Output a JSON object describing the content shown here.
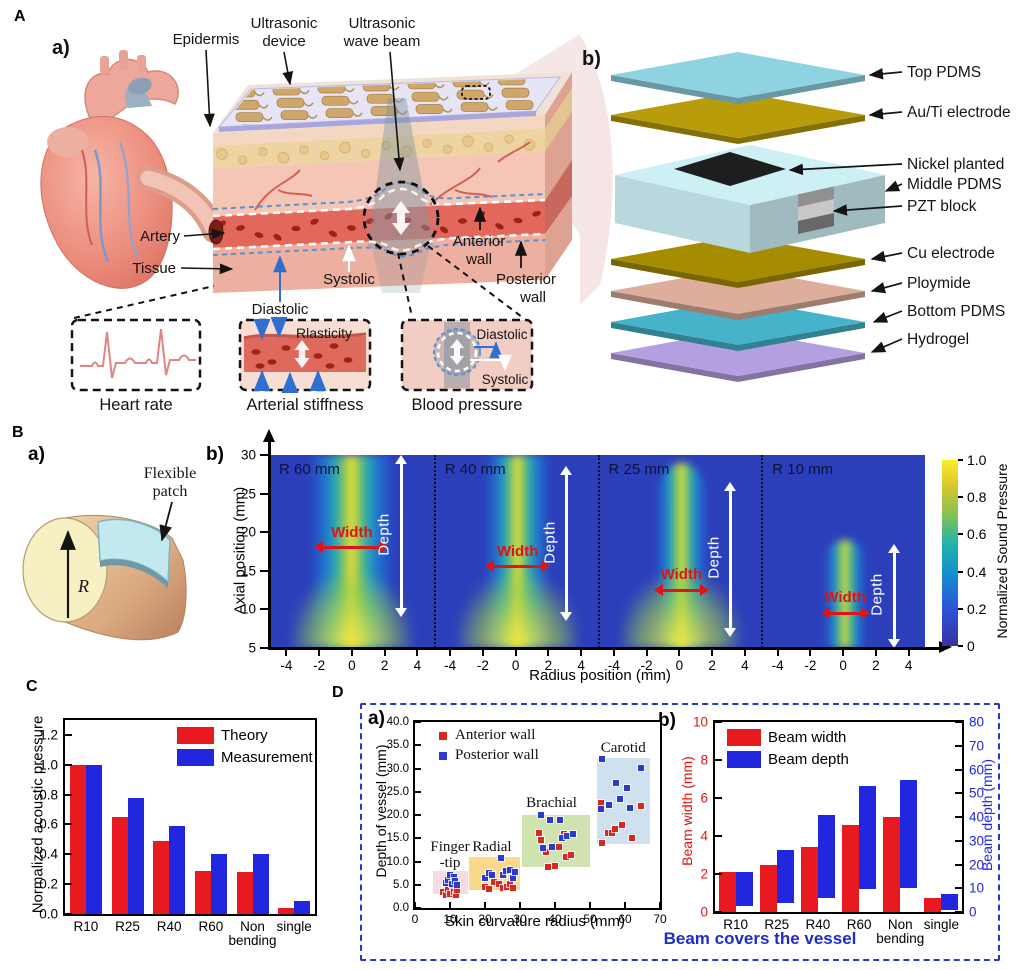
{
  "panelA": {
    "letter": "A",
    "a": {
      "label": "a)",
      "epidermis": "Epidermis",
      "ultrasonic_device": [
        "Ultrasonic",
        "device"
      ],
      "wave_beam": [
        "Ultrasonic",
        "wave beam"
      ],
      "artery": "Artery",
      "tissue": "Tissue",
      "systolic": "Systolic",
      "diastolic": "Diastolic",
      "anterior_wall": [
        "Anterior",
        "wall"
      ],
      "posterior_wall": [
        "Posterior",
        "wall"
      ],
      "insets": {
        "heart_rate": "Heart rate",
        "arterial_stiffness": "Arterial stiffness",
        "elasticity_note": "Rlasticity",
        "blood_pressure": "Blood pressure",
        "bp_diastolic": "Diastolic",
        "bp_systolic": "Systolic"
      }
    },
    "b": {
      "label": "b)",
      "layers": [
        {
          "name": "Top PDMS",
          "color": "#8fd3e2"
        },
        {
          "name": "Au/Ti electrode",
          "color": "#b89c0a"
        },
        {
          "name": "Nickel planted",
          "color": "#1e1e1e"
        },
        {
          "name": "Middle PDMS",
          "color": "#cdf0f5"
        },
        {
          "name": "PZT block",
          "color": "#909090"
        },
        {
          "name": "Cu electrode",
          "color": "#a68d00"
        },
        {
          "name": "Ploymide",
          "color": "#dcae9b"
        },
        {
          "name": "Bottom PDMS",
          "color": "#45b3c9"
        },
        {
          "name": "Hydrogel",
          "color": "#b4a0e0"
        }
      ]
    }
  },
  "panelB": {
    "letter": "B",
    "a": {
      "label": "a)",
      "flexible_patch": [
        "Flexible",
        "patch"
      ],
      "radius": "R"
    },
    "b": {
      "label": "b)"
    }
  },
  "panelC": {
    "letter": "C"
  },
  "panelD": {
    "letter": "D",
    "a_label": "a)",
    "b_label": "b)",
    "caption": "Beam covers the vessel"
  },
  "chart_data": [
    {
      "id": "sound-pressure-field",
      "type": "heatmap",
      "ylabel": "Axial position (mm)",
      "xlabel": "Radius position (mm)",
      "y_ticks": [
        30,
        25,
        20,
        15,
        10,
        5
      ],
      "x_ticks": [
        -4,
        -2,
        0,
        2,
        4
      ],
      "x_range_mm": [
        -5,
        5
      ],
      "y_range_mm": [
        5,
        30
      ],
      "colorbar": {
        "label": "Normalized Sound Pressure",
        "ticks": [
          "1.0",
          "0.8",
          "0.6",
          "0.4",
          "0.2",
          "0"
        ],
        "range": [
          0,
          1
        ]
      },
      "annotations": {
        "width_label": "Width",
        "depth_label": "Depth"
      },
      "panels": [
        {
          "label": "R 60 mm",
          "beam": {
            "visual_width_mm": 5.2,
            "top_mm": 30,
            "bottom_mm": 5,
            "glow": true
          },
          "width_arrow": {
            "y_mm": 18,
            "span_mm": 3.6
          },
          "depth_arrow": {
            "x_mm": 3,
            "from_mm": 10,
            "to_mm": 29
          }
        },
        {
          "label": "R 40 mm",
          "beam": {
            "visual_width_mm": 4.0,
            "top_mm": 30,
            "bottom_mm": 5,
            "glow": true
          },
          "width_arrow": {
            "y_mm": 15.5,
            "span_mm": 3.0
          },
          "depth_arrow": {
            "x_mm": 3,
            "from_mm": 9.5,
            "to_mm": 27.5
          }
        },
        {
          "label": "R 25 mm",
          "beam": {
            "visual_width_mm": 3.2,
            "top_mm": 29,
            "bottom_mm": 5,
            "glow": true
          },
          "width_arrow": {
            "y_mm": 12.5,
            "span_mm": 2.4
          },
          "depth_arrow": {
            "x_mm": 3,
            "from_mm": 7.5,
            "to_mm": 25.5
          }
        },
        {
          "label": "R 10 mm",
          "beam": {
            "visual_width_mm": 2.6,
            "top_mm": 19,
            "bottom_mm": 5,
            "glow": false
          },
          "width_arrow": {
            "y_mm": 9.5,
            "span_mm": 2.0
          },
          "depth_arrow": {
            "x_mm": 3,
            "from_mm": 6,
            "to_mm": 17.5
          }
        }
      ]
    },
    {
      "id": "acoustic-pressure-bars",
      "type": "bar",
      "ylabel": "Normalized acoustic pressure",
      "categories": [
        "R10",
        "R25",
        "R40",
        "R60",
        "Non\nbending",
        "single"
      ],
      "y_ticks": [
        0,
        0.2,
        0.4,
        0.6,
        0.8,
        1.0,
        1.2
      ],
      "ylim": [
        0,
        1.3
      ],
      "legend_position": "top-right",
      "series": [
        {
          "name": "Theory",
          "color": "#e8191f",
          "values": [
            1.0,
            0.65,
            0.49,
            0.29,
            0.28,
            0.04
          ]
        },
        {
          "name": "Measurement",
          "color": "#2127df",
          "values": [
            1.0,
            0.78,
            0.59,
            0.4,
            0.4,
            0.09
          ]
        }
      ]
    },
    {
      "id": "vessel-depth-scatter",
      "type": "scatter",
      "xlabel": "Skin curvature radius (mm)",
      "ylabel": "Depth of vessel (mm)",
      "xlim": [
        0,
        70
      ],
      "ylim": [
        0,
        40
      ],
      "x_ticks": [
        0,
        10,
        20,
        30,
        40,
        50,
        60,
        70
      ],
      "y_ticks": [
        "0.0",
        "5.0",
        "10.0",
        "15.0",
        "20.0",
        "25.0",
        "30.0",
        "35.0",
        "40.0"
      ],
      "regions": [
        {
          "name": "Finger\n-tip",
          "x": [
            5,
            15
          ],
          "y": [
            3,
            8
          ],
          "color": "#f6dbe2",
          "label_x": 10,
          "label_y": 11.5
        },
        {
          "name": "Radial",
          "x": [
            15.5,
            30
          ],
          "y": [
            3.8,
            11
          ],
          "color": "#fbd88a",
          "label_x": 22,
          "label_y": 13.2
        },
        {
          "name": "Brachial",
          "x": [
            30.5,
            50
          ],
          "y": [
            8.8,
            20
          ],
          "color": "#cfe2b0",
          "label_x": 39,
          "label_y": 22.5
        },
        {
          "name": "Carotid",
          "x": [
            52,
            67
          ],
          "y": [
            13.8,
            32.2
          ],
          "color": "#cfe1ee",
          "label_x": 59.5,
          "label_y": 34.5
        }
      ],
      "series": [
        {
          "name": "Anterior wall",
          "color": "#d42a22",
          "points": [
            [
              8,
              3.4
            ],
            [
              8.8,
              2.9
            ],
            [
              9.5,
              4.1
            ],
            [
              10,
              3.1
            ],
            [
              10.8,
              4.6
            ],
            [
              11.2,
              3.4
            ],
            [
              11.6,
              2.7
            ],
            [
              12,
              3.9
            ],
            [
              20,
              4.6
            ],
            [
              21,
              4.1
            ],
            [
              22.5,
              5.6
            ],
            [
              24,
              5.1
            ],
            [
              25,
              4.4
            ],
            [
              25.5,
              7.2
            ],
            [
              26.2,
              4.6
            ],
            [
              27,
              5.1
            ],
            [
              28,
              4.2
            ],
            [
              35.5,
              16.1
            ],
            [
              36,
              14.6
            ],
            [
              37.5,
              12.1
            ],
            [
              38,
              8.9
            ],
            [
              40,
              9.0
            ],
            [
              41,
              13.1
            ],
            [
              42.5,
              16.0
            ],
            [
              43.2,
              10.9
            ],
            [
              44.5,
              11.3
            ],
            [
              53,
              22.6
            ],
            [
              53.5,
              14.0
            ],
            [
              55,
              16.1
            ],
            [
              56.2,
              16.2
            ],
            [
              57.2,
              17.0
            ],
            [
              59,
              17.9
            ],
            [
              62,
              15.1
            ],
            [
              64.5,
              21.9
            ]
          ]
        },
        {
          "name": "Posterior wall",
          "color": "#2b3bd0",
          "points": [
            [
              8.8,
              5.4
            ],
            [
              9.4,
              6.1
            ],
            [
              10,
              7.0
            ],
            [
              10.5,
              5.1
            ],
            [
              11,
              6.6
            ],
            [
              11.5,
              5.9
            ],
            [
              12,
              4.9
            ],
            [
              20,
              6.4
            ],
            [
              21,
              7.6
            ],
            [
              22,
              7.1
            ],
            [
              24.5,
              10.7
            ],
            [
              25,
              7.2
            ],
            [
              26,
              7.9
            ],
            [
              27,
              8.1
            ],
            [
              28,
              6.4
            ],
            [
              28.5,
              7.7
            ],
            [
              36,
              19.9
            ],
            [
              36.5,
              13.0
            ],
            [
              38.5,
              18.9
            ],
            [
              39,
              13.2
            ],
            [
              41.5,
              18.9
            ],
            [
              42,
              15.1
            ],
            [
              43.5,
              15.5
            ],
            [
              45,
              15.9
            ],
            [
              53,
              21.2
            ],
            [
              53.5,
              32.0
            ],
            [
              55.5,
              22.1
            ],
            [
              57.5,
              26.9
            ],
            [
              58.5,
              23.4
            ],
            [
              60.5,
              25.9
            ],
            [
              61.5,
              21.6
            ],
            [
              64.5,
              30.1
            ]
          ]
        }
      ]
    },
    {
      "id": "beam-dimensions-bars",
      "type": "bar",
      "categories": [
        "R10",
        "R25",
        "R40",
        "R60",
        "Non\nbending",
        "single"
      ],
      "left_axis": {
        "label": "Beam width (mm)",
        "color": "#e01414",
        "ticks": [
          0,
          2,
          4,
          6,
          8,
          10
        ],
        "lim": [
          0,
          10
        ]
      },
      "right_axis": {
        "label": "Beam depth (mm)",
        "color": "#2127df",
        "ticks": [
          0,
          10,
          20,
          30,
          40,
          50,
          60,
          70,
          80
        ],
        "lim": [
          0,
          80
        ]
      },
      "series": [
        {
          "name": "Beam width",
          "color": "#e8191f",
          "axis": "left",
          "values": [
            2.1,
            2.5,
            3.4,
            4.6,
            5.0,
            0.75
          ]
        },
        {
          "name": "Beam depth",
          "color": "#2127df",
          "axis": "right",
          "ranges": [
            [
              2.5,
              17
            ],
            [
              4,
              26
            ],
            [
              6,
              41
            ],
            [
              9.5,
              53
            ],
            [
              10,
              55.5
            ],
            [
              1,
              7.5
            ]
          ]
        }
      ]
    }
  ]
}
